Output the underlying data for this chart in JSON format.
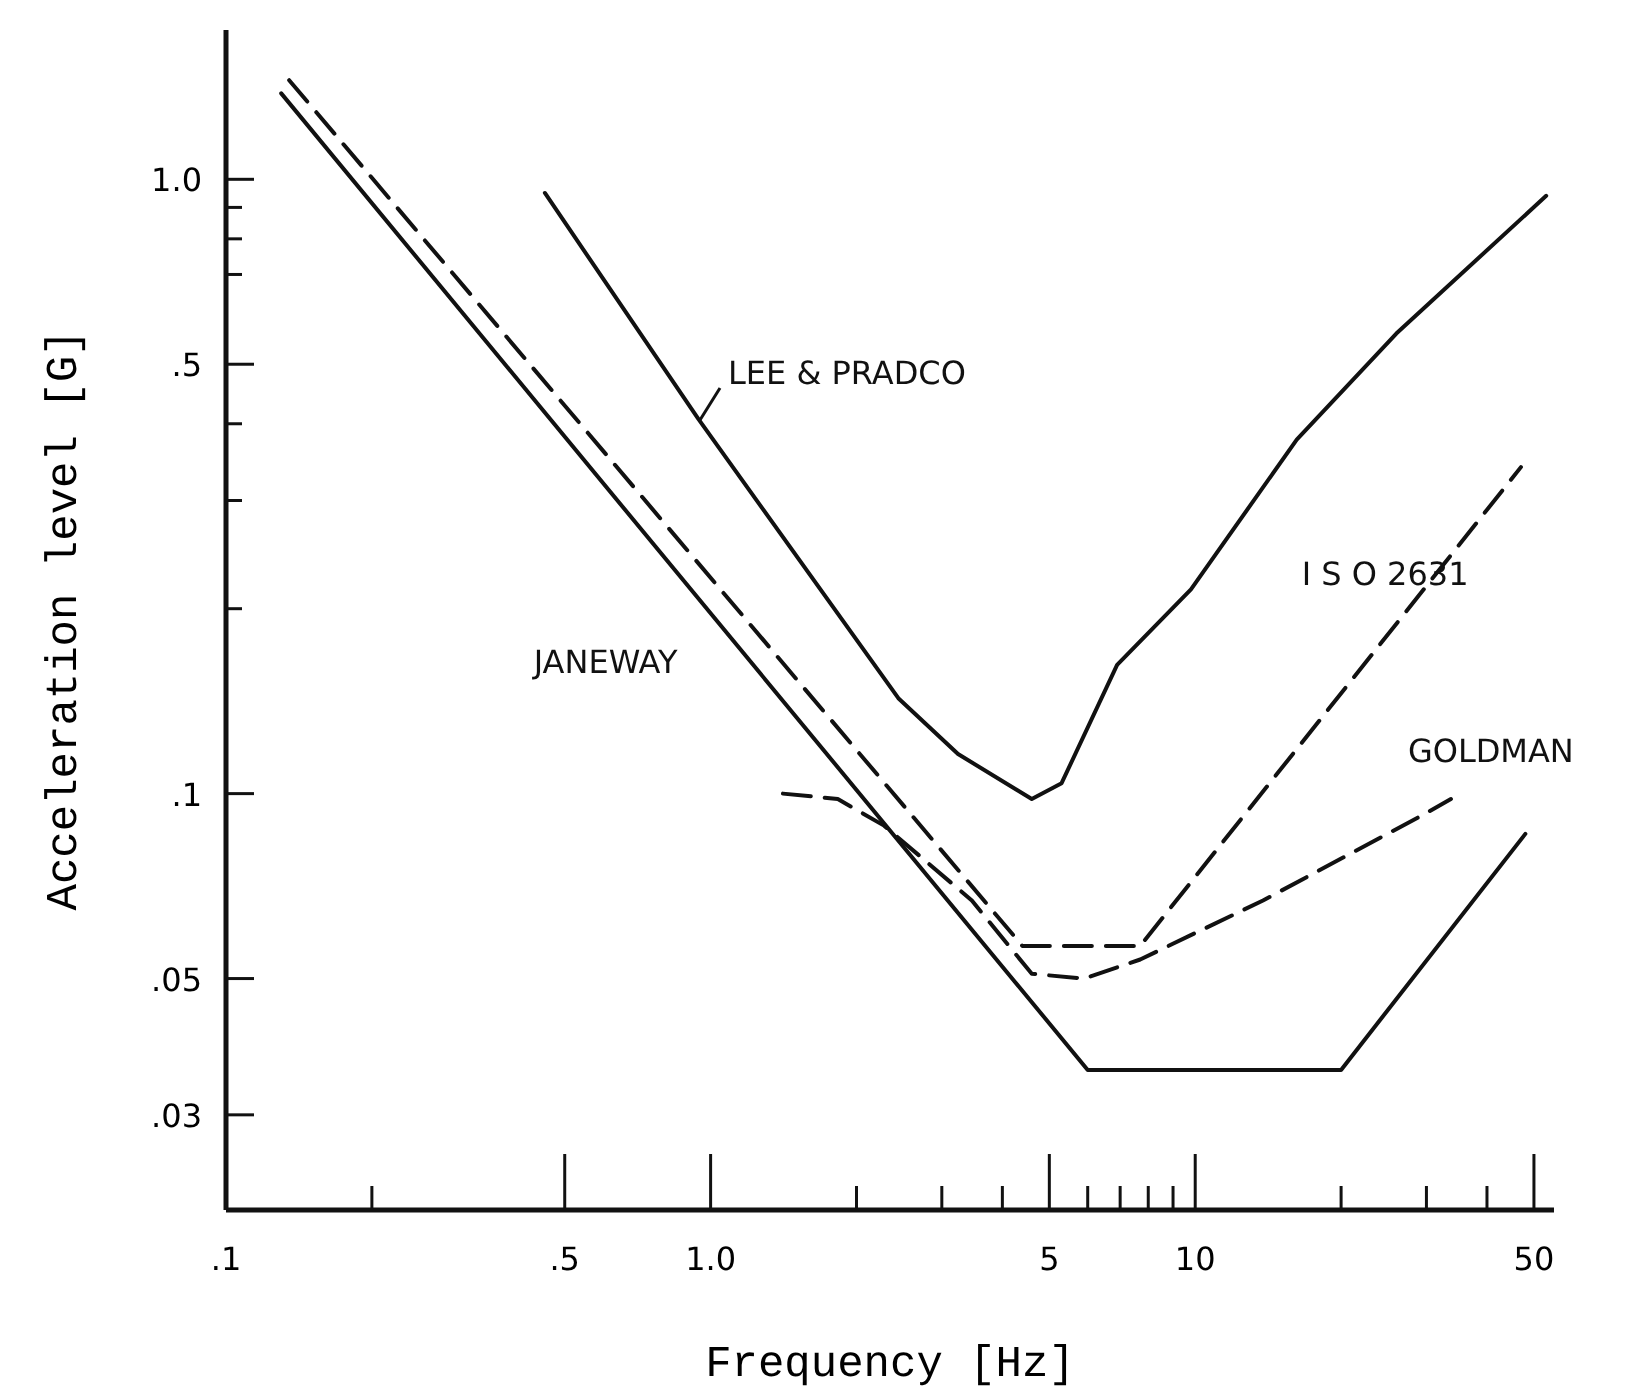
{
  "chart_data": {
    "type": "line",
    "xlabel": "Frequency [Hz]",
    "ylabel": "Acceleration level [G]",
    "log": "xy",
    "grid": false,
    "legend": false,
    "xlim": [
      0.1,
      55
    ],
    "ylim": [
      0.021,
      1.75
    ],
    "xticks": [
      {
        "value": 0.1,
        "label": ".1"
      },
      {
        "value": 0.2,
        "label": null
      },
      {
        "value": 0.5,
        "label": ".5"
      },
      {
        "value": 1,
        "label": "1.0"
      },
      {
        "value": 2,
        "label": null
      },
      {
        "value": 3,
        "label": null
      },
      {
        "value": 4,
        "label": null
      },
      5,
      {
        "value": 6,
        "label": null
      },
      {
        "value": 7,
        "label": null
      },
      {
        "value": 8,
        "label": null
      },
      {
        "value": 9,
        "label": null
      },
      10,
      {
        "value": 20,
        "label": null
      },
      {
        "value": 30,
        "label": null
      },
      {
        "value": 40,
        "label": null
      },
      50
    ],
    "yticks": [
      {
        "value": 0.03,
        "label": ".03"
      },
      {
        "value": 0.05,
        "label": ".05"
      },
      {
        "value": 0.1,
        "label": ".1"
      },
      {
        "value": 0.2,
        "label": null
      },
      {
        "value": 0.3,
        "label": null
      },
      {
        "value": 0.4,
        "label": null
      },
      {
        "value": 0.5,
        "label": ".5"
      },
      {
        "value": 0.7,
        "label": null
      },
      {
        "value": 0.8,
        "label": null
      },
      {
        "value": 0.9,
        "label": null
      },
      {
        "value": 1,
        "label": "1.0"
      }
    ],
    "series": [
      {
        "name": "JANEWAY",
        "color": "#111111",
        "line_style": "solid",
        "x": [
          0.13,
          6,
          20,
          48
        ],
        "values": [
          1.38,
          0.0355,
          0.0355,
          0.086
        ]
      },
      {
        "name": "I S O 2631",
        "color": "#111111",
        "line_style": "dashed",
        "x": [
          0.135,
          4.4,
          7.7,
          47
        ],
        "values": [
          1.45,
          0.0565,
          0.0565,
          0.34
        ]
      },
      {
        "name": "GOLDMAN",
        "color": "#111111",
        "line_style": "dashed",
        "x": [
          1.41,
          1.83,
          2.28,
          3.46,
          4.6,
          5.9,
          7.7,
          13.8,
          30,
          33.7
        ],
        "values": [
          0.1,
          0.098,
          0.0887,
          0.067,
          0.0509,
          0.05,
          0.0537,
          0.067,
          0.093,
          0.098
        ]
      },
      {
        "name": "LEE & PRADCO",
        "color": "#111111",
        "line_style": "solid",
        "x": [
          0.455,
          0.944,
          2.44,
          3.24,
          4.6,
          5.3,
          6.9,
          9.8,
          16.2,
          26,
          53
        ],
        "values": [
          0.95,
          0.407,
          0.143,
          0.116,
          0.098,
          0.104,
          0.162,
          0.215,
          0.377,
          0.561,
          0.94
        ]
      }
    ]
  }
}
